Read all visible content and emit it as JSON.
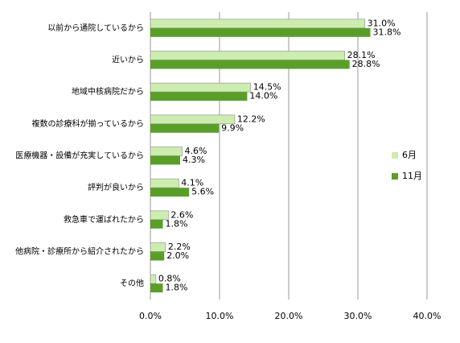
{
  "chart_data": {
    "type": "bar",
    "orientation": "horizontal",
    "categories": [
      "以前から通院しているから",
      "近いから",
      "地域中核病院だから",
      "複数の診療科が揃っているから",
      "医療機器・設備が充実しているから",
      "評判が良いから",
      "救急車で運ばれたから",
      "他病院・診療所から紹介されたから",
      "その他"
    ],
    "series": [
      {
        "name": "6月",
        "color": "#ccecb0",
        "values": [
          31.0,
          28.1,
          14.5,
          12.2,
          4.6,
          4.1,
          2.6,
          2.2,
          0.8
        ],
        "value_labels": [
          "31.0%",
          "28.1%",
          "14.5%",
          "12.2%",
          "4.6%",
          "4.1%",
          "2.6%",
          "2.2%",
          "0.8%"
        ]
      },
      {
        "name": "11月",
        "color": "#5a9e2a",
        "values": [
          31.8,
          28.8,
          14.0,
          9.9,
          4.3,
          5.6,
          1.8,
          2.0,
          1.8
        ],
        "value_labels": [
          "31.8%",
          "28.8%",
          "14.0%",
          "9.9%",
          "4.3%",
          "5.6%",
          "1.8%",
          "2.0%",
          "1.8%"
        ]
      }
    ],
    "xlim": [
      0,
      40
    ],
    "xticks": [
      {
        "value": 0,
        "label": "0.0%"
      },
      {
        "value": 10,
        "label": "10.0%"
      },
      {
        "value": 20,
        "label": "20.0%"
      },
      {
        "value": 30,
        "label": "30.0%"
      },
      {
        "value": 40,
        "label": "40.0%"
      }
    ],
    "grid": true
  }
}
